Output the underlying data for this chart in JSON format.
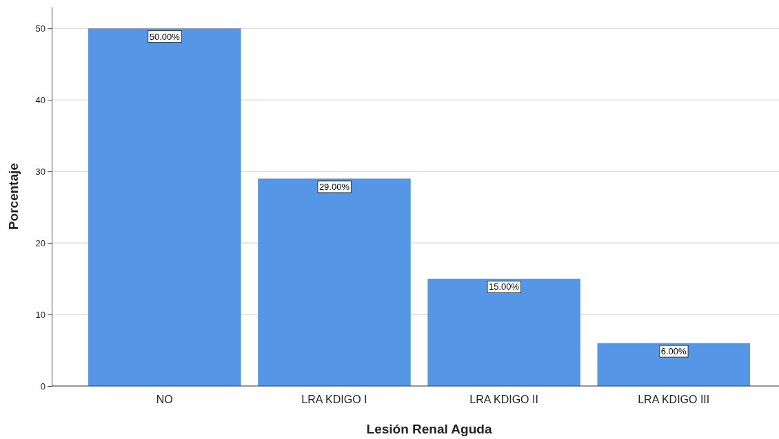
{
  "chart_data": {
    "type": "bar",
    "xlabel": "Lesión Renal Aguda",
    "ylabel": "Porcentaje",
    "categories": [
      "NO",
      "LRA KDIGO I",
      "LRA KDIGO II",
      "LRA KDIGO III"
    ],
    "values": [
      50,
      29,
      15,
      6
    ],
    "value_labels": [
      "50.00%",
      "29.00%",
      "15.00%",
      "6.00%"
    ],
    "color": "#5596e6",
    "ylim": [
      0,
      53
    ],
    "yticks": [
      0,
      10,
      20,
      30,
      40,
      50
    ],
    "grid": "y"
  }
}
